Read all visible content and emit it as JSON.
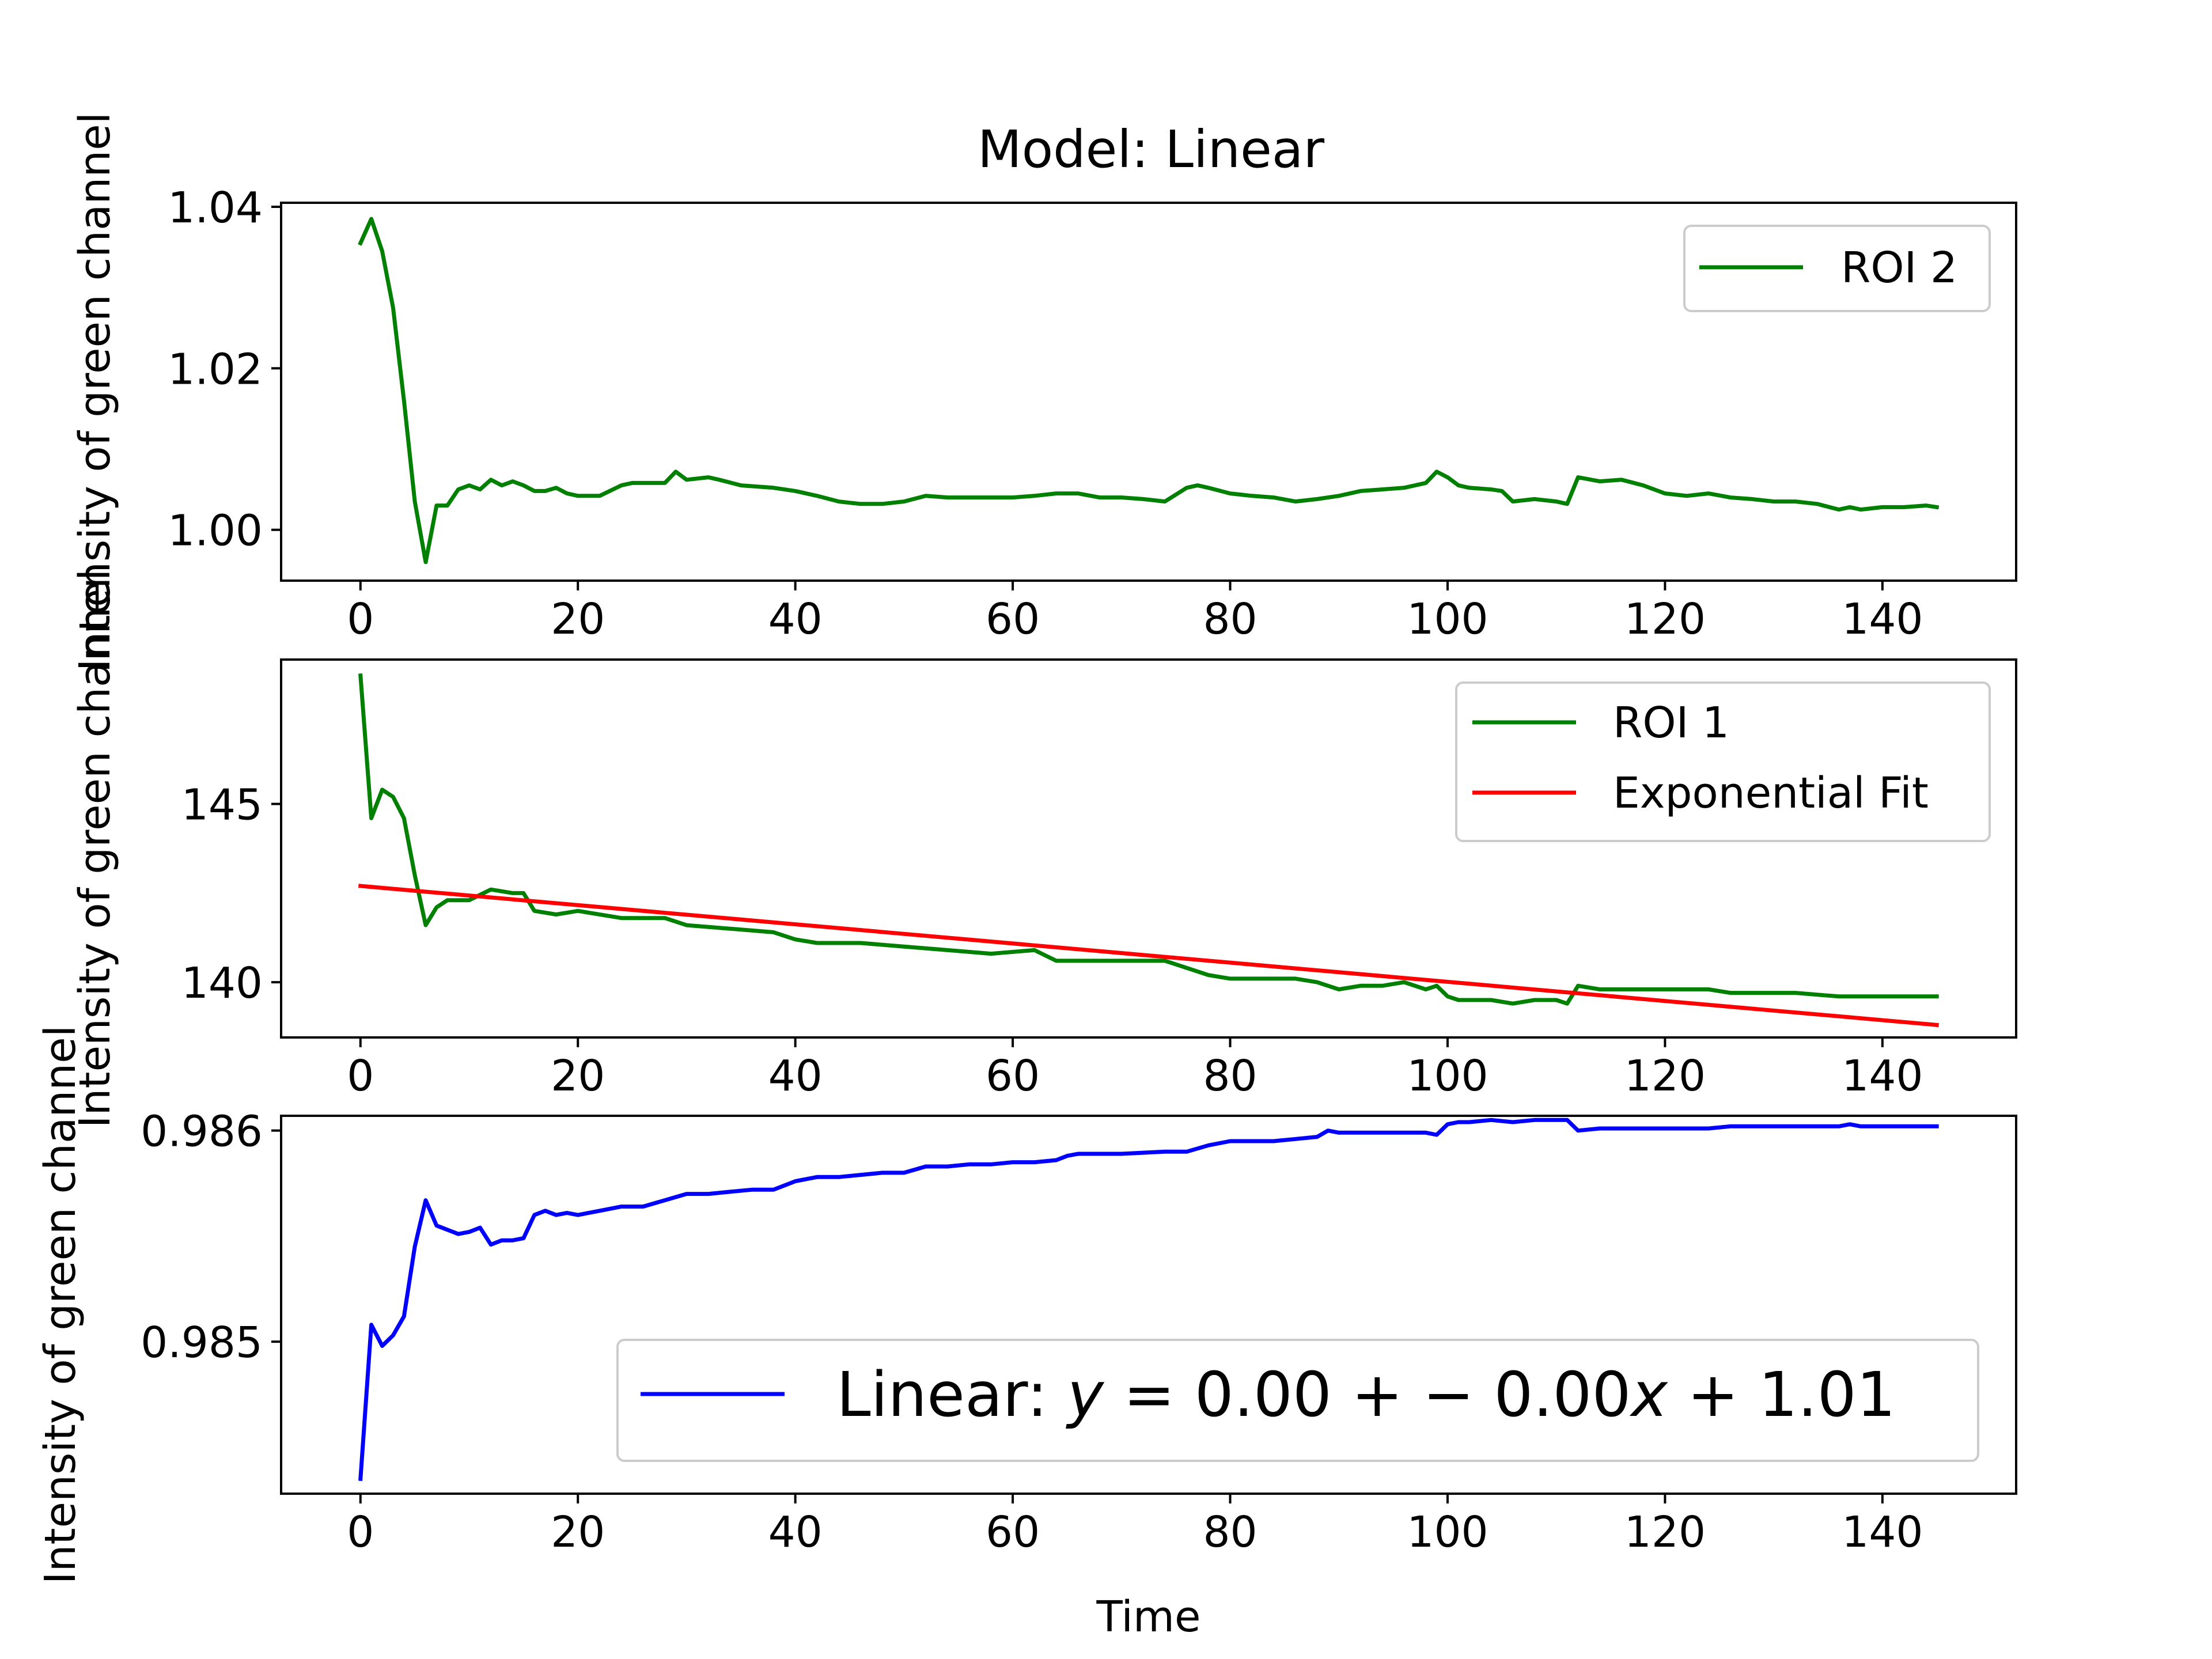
{
  "colors": {
    "green": "#008000",
    "red": "#ff0000",
    "blue": "#0000ff",
    "axes": "#000000",
    "legend_border": "#cccccc"
  },
  "chart_data": [
    {
      "type": "line",
      "title": "Model: Linear",
      "xlabel": "",
      "ylabel": "Intensity of green channel",
      "xlim": [
        -7.3,
        152.3
      ],
      "ylim": [
        0.9937,
        1.0405
      ],
      "xticks": [
        0,
        20,
        40,
        60,
        80,
        100,
        120,
        140
      ],
      "xtick_labels": [
        "0",
        "20",
        "40",
        "60",
        "80",
        "100",
        "120",
        "140"
      ],
      "yticks": [
        1.0,
        1.02,
        1.04
      ],
      "ytick_labels": [
        "1.00",
        "1.02",
        "1.04"
      ],
      "grid": false,
      "legend": "upper-right",
      "series": [
        {
          "name": "ROI 2",
          "color": "#008000",
          "x": [
            0,
            1,
            2,
            3,
            4,
            5,
            6,
            7,
            8,
            9,
            10,
            11,
            12,
            13,
            14,
            15,
            16,
            17,
            18,
            19,
            20,
            22,
            24,
            25,
            28,
            29,
            30,
            32,
            33,
            35,
            38,
            40,
            42,
            44,
            46,
            48,
            50,
            52,
            54,
            56,
            58,
            60,
            62,
            64,
            66,
            68,
            70,
            72,
            74,
            76,
            77,
            78,
            80,
            82,
            84,
            86,
            88,
            90,
            92,
            94,
            96,
            98,
            99,
            100,
            101,
            102,
            104,
            105,
            106,
            108,
            110,
            111,
            112,
            114,
            116,
            118,
            120,
            122,
            124,
            126,
            128,
            130,
            132,
            134,
            136,
            137,
            138,
            140,
            142,
            144,
            145
          ],
          "y": [
            1.0355,
            1.0385,
            1.0345,
            1.0275,
            1.016,
            1.0035,
            0.996,
            1.003,
            1.003,
            1.005,
            1.0055,
            1.005,
            1.0062,
            1.0055,
            1.006,
            1.0055,
            1.0048,
            1.0048,
            1.0052,
            1.0045,
            1.0042,
            1.0042,
            1.0055,
            1.0058,
            1.0058,
            1.0072,
            1.0062,
            1.0065,
            1.0062,
            1.0055,
            1.0052,
            1.0048,
            1.0042,
            1.0035,
            1.0032,
            1.0032,
            1.0035,
            1.0042,
            1.004,
            1.004,
            1.004,
            1.004,
            1.0042,
            1.0045,
            1.0045,
            1.004,
            1.004,
            1.0038,
            1.0035,
            1.0052,
            1.0055,
            1.0052,
            1.0045,
            1.0042,
            1.004,
            1.0035,
            1.0038,
            1.0042,
            1.0048,
            1.005,
            1.0052,
            1.0058,
            1.0072,
            1.0065,
            1.0055,
            1.0052,
            1.005,
            1.0048,
            1.0035,
            1.0038,
            1.0035,
            1.0032,
            1.0065,
            1.006,
            1.0062,
            1.0055,
            1.0045,
            1.0042,
            1.0045,
            1.004,
            1.0038,
            1.0035,
            1.0035,
            1.0032,
            1.0025,
            1.0028,
            1.0025,
            1.0028,
            1.0028,
            1.003,
            1.0028
          ]
        }
      ]
    },
    {
      "type": "line",
      "title": "",
      "xlabel": "",
      "ylabel": "Intensity of green channel",
      "xlim": [
        -7.3,
        152.3
      ],
      "ylim": [
        138.45,
        149.05
      ],
      "xticks": [
        0,
        20,
        40,
        60,
        80,
        100,
        120,
        140
      ],
      "xtick_labels": [
        "0",
        "20",
        "40",
        "60",
        "80",
        "100",
        "120",
        "140"
      ],
      "yticks": [
        140,
        145
      ],
      "ytick_labels": [
        "140",
        "145"
      ],
      "grid": false,
      "legend": "upper-right",
      "series": [
        {
          "name": "ROI 1",
          "color": "#008000",
          "x": [
            0,
            1,
            2,
            3,
            4,
            5,
            6,
            7,
            8,
            10,
            12,
            14,
            15,
            16,
            18,
            20,
            24,
            28,
            30,
            34,
            38,
            40,
            42,
            46,
            50,
            54,
            58,
            62,
            64,
            66,
            70,
            74,
            76,
            78,
            80,
            82,
            86,
            88,
            89,
            90,
            92,
            94,
            96,
            98,
            99,
            100,
            101,
            104,
            106,
            108,
            110,
            111,
            112,
            114,
            116,
            120,
            124,
            126,
            128,
            132,
            136,
            140,
            144,
            145
          ],
          "y": [
            148.6,
            144.6,
            145.4,
            145.2,
            144.6,
            143.0,
            141.6,
            142.1,
            142.3,
            142.3,
            142.6,
            142.5,
            142.5,
            142.0,
            141.9,
            142.0,
            141.8,
            141.8,
            141.6,
            141.5,
            141.4,
            141.2,
            141.1,
            141.1,
            141.0,
            140.9,
            140.8,
            140.9,
            140.6,
            140.6,
            140.6,
            140.6,
            140.4,
            140.2,
            140.1,
            140.1,
            140.1,
            140.0,
            139.9,
            139.8,
            139.9,
            139.9,
            140.0,
            139.8,
            139.9,
            139.6,
            139.5,
            139.5,
            139.4,
            139.5,
            139.5,
            139.4,
            139.9,
            139.8,
            139.8,
            139.8,
            139.8,
            139.7,
            139.7,
            139.7,
            139.6,
            139.6,
            139.6,
            139.6
          ]
        },
        {
          "name": "Exponential Fit",
          "color": "#ff0000",
          "x": [
            0,
            145
          ],
          "y": [
            142.7,
            138.8
          ]
        }
      ]
    },
    {
      "type": "line",
      "title": "",
      "xlabel": "Time",
      "ylabel": "Intensity of green channel",
      "xlim": [
        -7.3,
        152.3
      ],
      "ylim": [
        0.98428,
        0.98607
      ],
      "xticks": [
        0,
        20,
        40,
        60,
        80,
        100,
        120,
        140
      ],
      "xtick_labels": [
        "0",
        "20",
        "40",
        "60",
        "80",
        "100",
        "120",
        "140"
      ],
      "yticks": [
        0.985,
        0.986
      ],
      "ytick_labels": [
        "0.985",
        "0.986"
      ],
      "grid": false,
      "legend": "lower-right",
      "series": [
        {
          "name": "Linear: y = 0.00 + − 0.00x + 1.01",
          "color": "#0000ff",
          "x": [
            0,
            1,
            2,
            3,
            4,
            5,
            6,
            7,
            8,
            9,
            10,
            11,
            12,
            13,
            14,
            15,
            16,
            17,
            18,
            19,
            20,
            22,
            24,
            26,
            28,
            30,
            32,
            34,
            36,
            38,
            40,
            42,
            44,
            46,
            48,
            50,
            52,
            54,
            56,
            58,
            60,
            62,
            64,
            65,
            66,
            70,
            74,
            76,
            78,
            80,
            82,
            84,
            86,
            88,
            89,
            90,
            92,
            94,
            96,
            98,
            99,
            100,
            101,
            102,
            104,
            106,
            108,
            110,
            111,
            112,
            114,
            116,
            118,
            120,
            122,
            124,
            126,
            128,
            130,
            132,
            134,
            136,
            137,
            138,
            140,
            142,
            144,
            145
          ],
          "y": [
            0.98435,
            0.98508,
            0.98498,
            0.98503,
            0.98512,
            0.98545,
            0.98567,
            0.98555,
            0.98553,
            0.98551,
            0.98552,
            0.98554,
            0.98546,
            0.98548,
            0.98548,
            0.98549,
            0.9856,
            0.98562,
            0.9856,
            0.98561,
            0.9856,
            0.98562,
            0.98564,
            0.98564,
            0.98567,
            0.9857,
            0.9857,
            0.98571,
            0.98572,
            0.98572,
            0.98576,
            0.98578,
            0.98578,
            0.98579,
            0.9858,
            0.9858,
            0.98583,
            0.98583,
            0.98584,
            0.98584,
            0.98585,
            0.98585,
            0.98586,
            0.98588,
            0.98589,
            0.98589,
            0.9859,
            0.9859,
            0.98593,
            0.98595,
            0.98595,
            0.98595,
            0.98596,
            0.98597,
            0.986,
            0.98599,
            0.98599,
            0.98599,
            0.98599,
            0.98599,
            0.98598,
            0.98603,
            0.98604,
            0.98604,
            0.98605,
            0.98604,
            0.98605,
            0.98605,
            0.98605,
            0.986,
            0.98601,
            0.98601,
            0.98601,
            0.98601,
            0.98601,
            0.98601,
            0.98602,
            0.98602,
            0.98602,
            0.98602,
            0.98602,
            0.98602,
            0.98603,
            0.98602,
            0.98602,
            0.98602,
            0.98602,
            0.98602
          ]
        }
      ],
      "legend_text": {
        "prefix": "Linear: ",
        "y": "y",
        "equals": " = 0.00 + − 0.00",
        "x": "x",
        "suffix": " + 1.01"
      }
    }
  ]
}
